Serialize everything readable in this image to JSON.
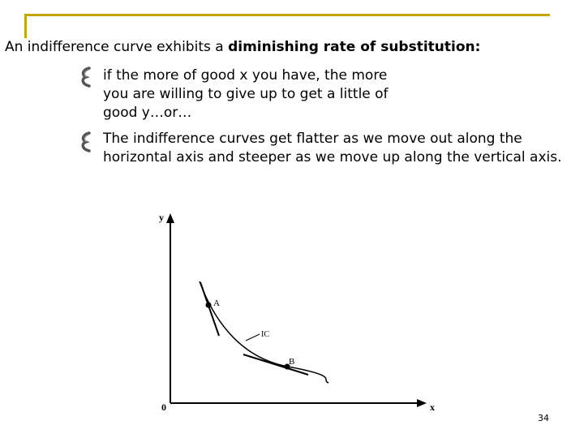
{
  "slide": {
    "intro_prefix": "An indifference curve exhibits a ",
    "intro_bold": "diminishing rate of substitution:",
    "bullets": [
      {
        "icon": "curly-bullet-icon",
        "lines": [
          "if the more of good x you have, the more",
          "you are willing to give up to get a little of",
          "good y…or…"
        ]
      },
      {
        "icon": "curly-bullet-icon",
        "lines": [
          "The indifference curves get flatter as we move out along the",
          "horizontal axis and steeper as we move up along the vertical axis."
        ]
      }
    ],
    "slide_number": "34",
    "accent_color": "#c8a400"
  },
  "diagram": {
    "y_axis_label": "y",
    "x_axis_label": "x",
    "origin_label": "0",
    "curve_label": "IC",
    "point_a_label": "A",
    "point_b_label": "B"
  }
}
